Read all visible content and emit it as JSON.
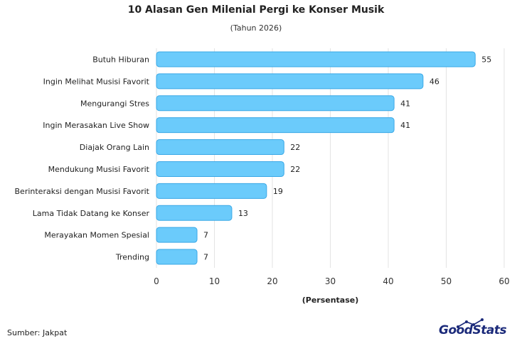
{
  "chart_data": {
    "type": "bar",
    "orientation": "horizontal",
    "title": "10 Alasan Gen Milenial Pergi ke Konser Musik",
    "subtitle": "(Tahun 2026)",
    "xlabel": "(Persentase)",
    "ylabel": "",
    "categories": [
      "Butuh Hiburan",
      "Ingin Melihat Musisi Favorit",
      "Mengurangi Stres",
      "Ingin Merasakan Live Show",
      "Diajak Orang Lain",
      "Mendukung Musisi Favorit",
      "Berinteraksi dengan Musisi Favorit",
      "Lama Tidak Datang ke Konser",
      "Merayakan Momen Spesial",
      "Trending"
    ],
    "values": [
      55,
      46,
      41,
      41,
      22,
      22,
      19,
      13,
      7,
      7
    ],
    "xlim": [
      0,
      60
    ],
    "xticks": [
      0,
      10,
      20,
      30,
      40,
      50,
      60
    ],
    "grid": true,
    "colors": {
      "bar_fill": "#6bcbfb",
      "bar_stroke": "#3aa8e6",
      "grid": "#e3e3e3",
      "text": "#222222"
    }
  },
  "footer": {
    "source": "Sumber: Jakpat",
    "logo_good": "Good",
    "logo_stats": "Stats"
  }
}
